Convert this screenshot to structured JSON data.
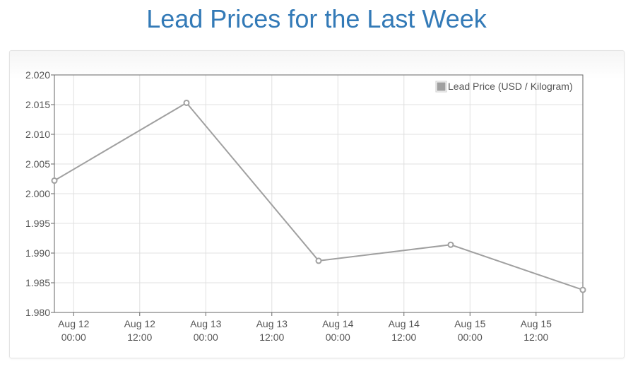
{
  "page": {
    "title": "Lead Prices for the Last Week"
  },
  "chart_data": {
    "type": "line",
    "title": "",
    "xlabel": "",
    "ylabel": "",
    "x_ticks": [
      [
        "Aug 12",
        "00:00"
      ],
      [
        "Aug 12",
        "12:00"
      ],
      [
        "Aug 13",
        "00:00"
      ],
      [
        "Aug 13",
        "12:00"
      ],
      [
        "Aug 14",
        "00:00"
      ],
      [
        "Aug 14",
        "12:00"
      ],
      [
        "Aug 15",
        "00:00"
      ],
      [
        "Aug 15",
        "12:00"
      ]
    ],
    "y_ticks": [
      "2.020",
      "2.015",
      "2.010",
      "2.005",
      "2.000",
      "1.995",
      "1.990",
      "1.985",
      "1.980"
    ],
    "ylim": [
      1.98,
      2.02
    ],
    "xlim": [
      "2023-08-11T20:30",
      "2023-08-15T20:30"
    ],
    "grid": true,
    "legend_position": "top-right",
    "series": [
      {
        "name": "Lead Price (USD / Kilogram)",
        "color": "#a0a0a0",
        "x": [
          "2023-08-11T20:30",
          "2023-08-12T20:30",
          "2023-08-13T20:30",
          "2023-08-14T20:30",
          "2023-08-15T20:30"
        ],
        "values": [
          2.0022,
          2.0153,
          1.9887,
          1.9914,
          1.9838
        ]
      }
    ]
  }
}
